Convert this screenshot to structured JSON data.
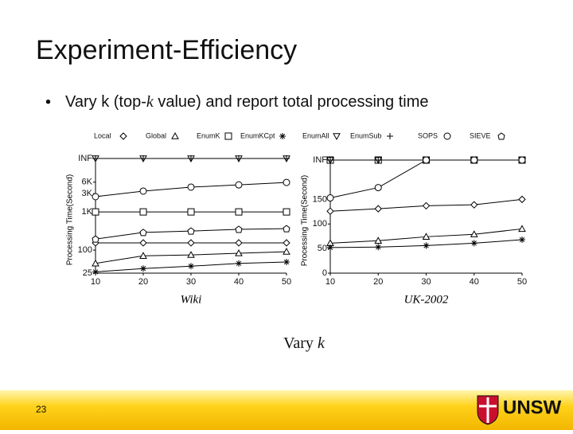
{
  "slide_title": "Experiment-Efficiency",
  "bullet": [
    "Vary k (top-",
    "k",
    " value) and report total processing time"
  ],
  "caption": [
    "Vary ",
    "k"
  ],
  "page_number": "23",
  "logo_text": "UNSW",
  "chart_data": [
    {
      "type": "line",
      "x_label": "Wiki",
      "y_label": "Processing Time(Second)",
      "log_y": true,
      "x": [
        10,
        20,
        30,
        40,
        50
      ],
      "xlim": [
        10,
        50
      ],
      "xticks": [
        10,
        20,
        30,
        40,
        50
      ],
      "ylim": [
        25,
        25000
      ],
      "yticks": [
        {
          "value": 25000,
          "label": "INF"
        },
        {
          "value": 6000,
          "label": "6K"
        },
        {
          "value": 3000,
          "label": "3K"
        },
        {
          "value": 1000,
          "label": "1K"
        },
        100,
        25
      ],
      "series": [
        {
          "name": "Local",
          "marker": "diamond",
          "color": "#000",
          "values": [
            155,
            155,
            155,
            155,
            155
          ]
        },
        {
          "name": "Global",
          "marker": "triangle",
          "color": "#000",
          "values": [
            45,
            71,
            75,
            83,
            91
          ]
        },
        {
          "name": "EnumK",
          "marker": "square",
          "color": "#000",
          "values": [
            1000,
            1000,
            1000,
            1000,
            1000
          ]
        },
        {
          "name": "EnumKCpt",
          "marker": "asterisk",
          "color": "#000",
          "values": [
            27,
            33,
            38,
            45,
            49
          ]
        },
        {
          "name": "EnumAll",
          "marker": "down-triangle",
          "color": "#000",
          "values": [
            25000,
            25000,
            25000,
            25000,
            25000
          ]
        },
        {
          "name": "EnumSub",
          "marker": "plus",
          "color": "#000",
          "values": [
            25000,
            25000,
            25000,
            25000,
            25000
          ]
        },
        {
          "name": "SOPS",
          "marker": "circle",
          "color": "#000",
          "values": [
            2500,
            3500,
            4450,
            5100,
            5900
          ]
        },
        {
          "name": "SIEVE",
          "marker": "pentagon",
          "color": "#000",
          "values": [
            195,
            290,
            316,
            350,
            365
          ]
        }
      ]
    },
    {
      "type": "line",
      "x_label": "UK-2002",
      "y_label": "Processing Time(Second)",
      "log_y": false,
      "x": [
        10,
        20,
        30,
        40,
        50
      ],
      "xlim": [
        10,
        50
      ],
      "xticks": [
        10,
        20,
        30,
        40,
        50
      ],
      "ylim": [
        0,
        230
      ],
      "yticks": [
        {
          "value": 230,
          "label": "INF"
        },
        150,
        100,
        50,
        0
      ],
      "series": [
        {
          "name": "Local",
          "marker": "diamond",
          "color": "#000",
          "values": [
            126,
            131,
            137,
            139,
            150
          ]
        },
        {
          "name": "Global",
          "marker": "triangle",
          "color": "#000",
          "values": [
            61,
            66,
            74,
            79,
            90
          ]
        },
        {
          "name": "EnumK",
          "marker": "square",
          "color": "#000",
          "values": [
            230,
            230,
            230,
            230,
            230
          ]
        },
        {
          "name": "EnumKCpt",
          "marker": "asterisk",
          "color": "#000",
          "values": [
            52,
            53,
            56,
            61,
            68
          ]
        },
        {
          "name": "EnumAll",
          "marker": "down-triangle",
          "color": "#000",
          "values": [
            230,
            230,
            230,
            230,
            230
          ]
        },
        {
          "name": "EnumSub",
          "marker": "plus",
          "color": "#000",
          "values": [
            230,
            230,
            230,
            230,
            230
          ]
        },
        {
          "name": "SOPS",
          "marker": "circle",
          "color": "#000",
          "values": [
            153,
            174,
            230,
            230,
            230
          ]
        }
      ]
    }
  ]
}
